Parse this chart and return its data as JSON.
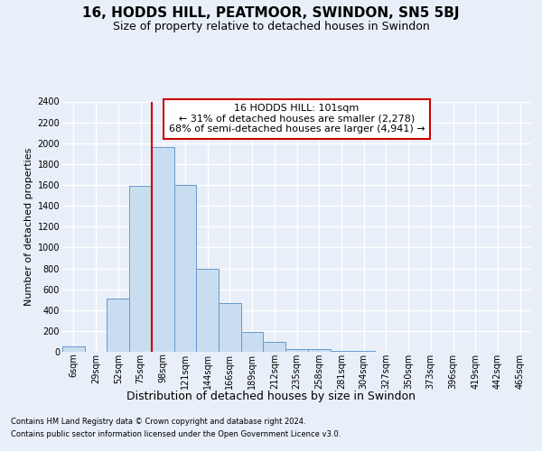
{
  "title": "16, HODDS HILL, PEATMOOR, SWINDON, SN5 5BJ",
  "subtitle": "Size of property relative to detached houses in Swindon",
  "xlabel": "Distribution of detached houses by size in Swindon",
  "ylabel": "Number of detached properties",
  "categories": [
    "6sqm",
    "29sqm",
    "52sqm",
    "75sqm",
    "98sqm",
    "121sqm",
    "144sqm",
    "166sqm",
    "189sqm",
    "212sqm",
    "235sqm",
    "258sqm",
    "281sqm",
    "304sqm",
    "327sqm",
    "350sqm",
    "373sqm",
    "396sqm",
    "419sqm",
    "442sqm",
    "465sqm"
  ],
  "values": [
    55,
    0,
    510,
    1590,
    1960,
    1600,
    800,
    470,
    190,
    95,
    30,
    25,
    10,
    5,
    0,
    0,
    0,
    0,
    0,
    0,
    0
  ],
  "bar_color": "#c9ddf0",
  "bar_edge_color": "#6699cc",
  "red_line_x": 3.5,
  "annotation_line1": "16 HODDS HILL: 101sqm",
  "annotation_line2": "← 31% of detached houses are smaller (2,278)",
  "annotation_line3": "68% of semi-detached houses are larger (4,941) →",
  "ylim_max": 2400,
  "ytick_step": 200,
  "footnote1": "Contains HM Land Registry data © Crown copyright and database right 2024.",
  "footnote2": "Contains public sector information licensed under the Open Government Licence v3.0.",
  "bg_color": "#e8eff8",
  "grid_color": "#ffffff",
  "title_fontsize": 11,
  "subtitle_fontsize": 9,
  "xlabel_fontsize": 9,
  "ylabel_fontsize": 8,
  "tick_fontsize": 7,
  "annot_fontsize": 8,
  "footnote_fontsize": 6
}
